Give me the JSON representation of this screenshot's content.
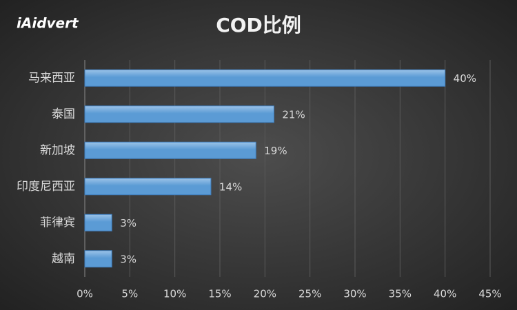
{
  "logo": "iAidvert",
  "chart_data": {
    "type": "bar",
    "orientation": "horizontal",
    "title": "COD比例",
    "categories": [
      "马来西亚",
      "泰国",
      "新加坡",
      "印度尼西亚",
      "菲律宾",
      "越南"
    ],
    "values": [
      40,
      21,
      19,
      14,
      3,
      3
    ],
    "value_labels": [
      "40%",
      "21%",
      "19%",
      "14%",
      "3%",
      "3%"
    ],
    "color": "#5b9bd5",
    "xlim": [
      0,
      45
    ],
    "xticks": [
      {
        "value": 0,
        "label": "0%"
      },
      {
        "value": 5,
        "label": "5%"
      },
      {
        "value": 10,
        "label": "10%"
      },
      {
        "value": 15,
        "label": "15%"
      },
      {
        "value": 20,
        "label": "20%"
      },
      {
        "value": 25,
        "label": "25%"
      },
      {
        "value": 30,
        "label": "30%"
      },
      {
        "value": 35,
        "label": "35%"
      },
      {
        "value": 40,
        "label": "40%"
      },
      {
        "value": 45,
        "label": "45%"
      }
    ],
    "grid": true
  }
}
